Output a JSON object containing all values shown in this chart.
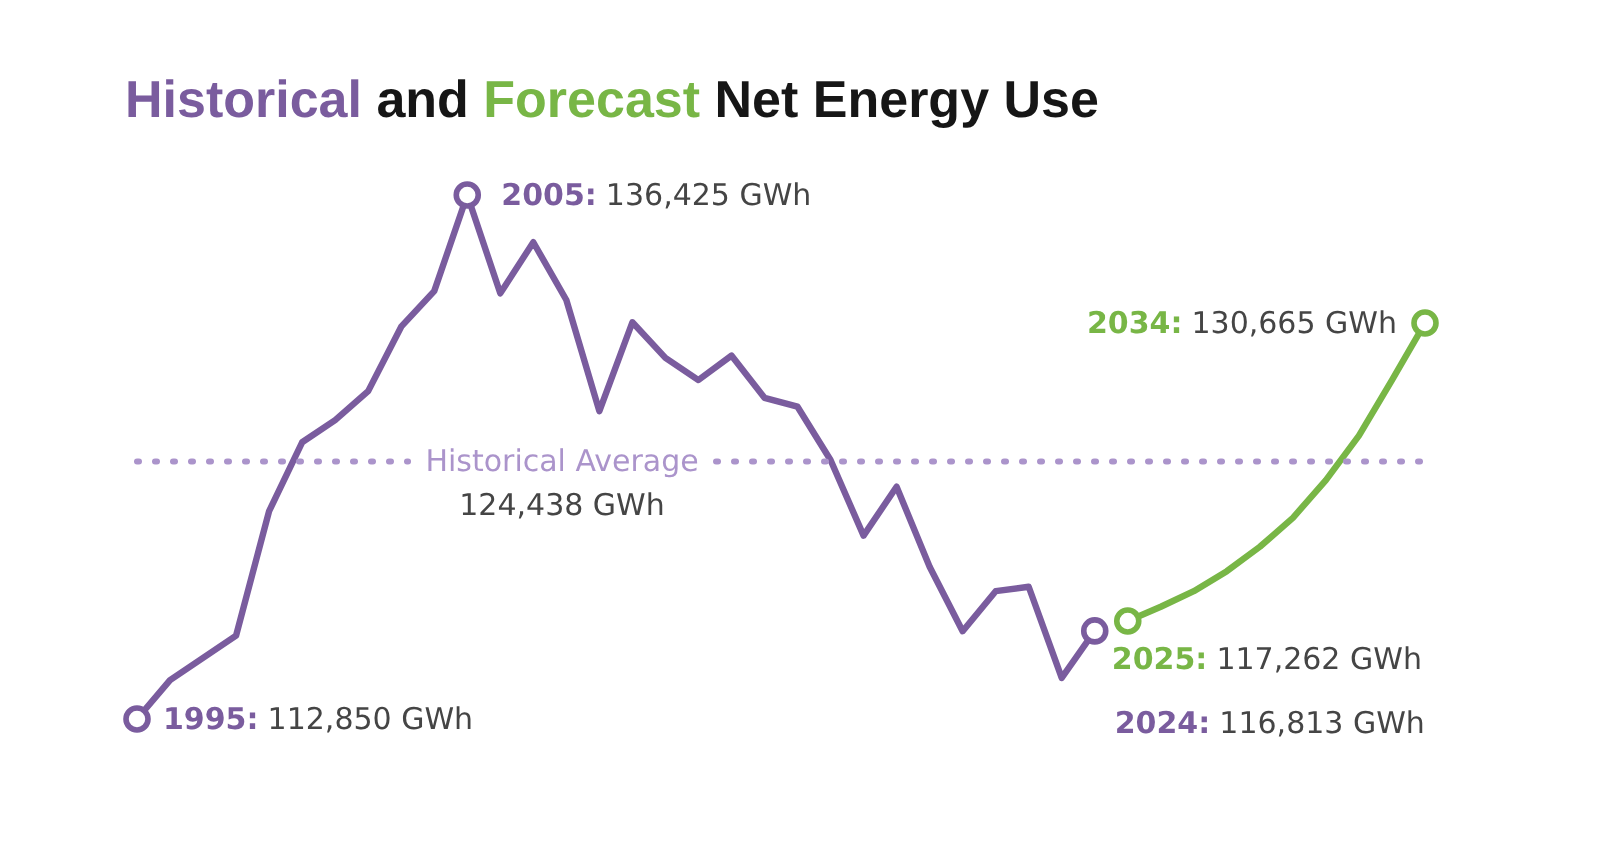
{
  "chart_data": {
    "type": "line",
    "title": "Historical and Forecast Net Energy Use",
    "grid": false,
    "tick_labels": false,
    "categories": [
      null,
      null,
      null,
      null,
      null,
      null,
      null,
      null,
      null,
      null,
      null,
      null,
      null,
      null,
      null,
      null,
      null,
      null,
      null,
      null,
      null,
      null,
      null,
      null,
      null,
      null,
      null,
      null,
      null,
      null,
      null,
      null,
      null,
      null,
      null,
      null,
      null,
      null,
      null,
      null
    ],
    "series": [
      {
        "color": "#7a5c9e",
        "values": [
          112850,
          114600,
          115600,
          116600,
          122200,
          125300,
          126300,
          127600,
          130500,
          132100,
          136425,
          132000,
          134300,
          131700,
          126700,
          130700,
          129100,
          128100,
          129200,
          127300,
          126900,
          124500,
          121100,
          123300,
          119700,
          116800,
          118600,
          118800,
          114700,
          116813,
          null,
          null,
          null,
          null,
          null,
          null,
          null,
          null,
          null,
          null
        ],
        "value_labels": [
          "1995: 112,850 GWh",
          null,
          null,
          null,
          null,
          null,
          null,
          null,
          null,
          null,
          "2005: 136,425 GWh",
          null,
          null,
          null,
          null,
          null,
          null,
          null,
          null,
          null,
          null,
          null,
          null,
          null,
          null,
          null,
          null,
          null,
          null,
          "2024: 116,813 GWh",
          null,
          null,
          null,
          null,
          null,
          null,
          null,
          null,
          null,
          null
        ]
      },
      {
        "color": "#78b646",
        "values": [
          null,
          null,
          null,
          null,
          null,
          null,
          null,
          null,
          null,
          null,
          null,
          null,
          null,
          null,
          null,
          null,
          null,
          null,
          null,
          null,
          null,
          null,
          null,
          null,
          null,
          null,
          null,
          null,
          null,
          null,
          117262,
          117900,
          118600,
          119500,
          120600,
          121900,
          123600,
          125600,
          128100,
          130665
        ],
        "value_labels": [
          null,
          null,
          null,
          null,
          null,
          null,
          null,
          null,
          null,
          null,
          null,
          null,
          null,
          null,
          null,
          null,
          null,
          null,
          null,
          null,
          null,
          null,
          null,
          null,
          null,
          null,
          null,
          null,
          null,
          null,
          "2025: 117,262 GWh",
          null,
          null,
          null,
          null,
          null,
          null,
          null,
          null,
          "2034: 130,665 GWh"
        ]
      }
    ],
    "ref_lines": [
      {
        "axis": "y",
        "value": 124438,
        "label": "Historical Average\n124,438 GWh",
        "color": "#ab94cb",
        "line_style": "dotted"
      }
    ]
  }
}
